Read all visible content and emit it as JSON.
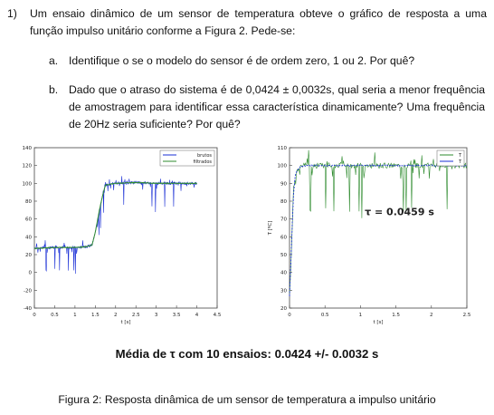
{
  "question": {
    "number": "1)",
    "text": "Um ensaio dinâmico de um sensor de temperatura obteve o gráfico de resposta a uma função impulso unitário conforme a Figura 2. Pede-se:",
    "items": [
      {
        "letter": "a.",
        "text": "Identifique o se o modelo do sensor é de ordem zero, 1 ou 2. Por quê?"
      },
      {
        "letter": "b.",
        "text": "Dado que o atraso do sistema é de 0,0424 ± 0,0032s, qual seria a menor frequência de amostragem para identificar essa característica dinamicamente? Uma frequência de 20Hz seria suficiente? Por quê?"
      }
    ]
  },
  "figure": {
    "mean_text": "Média de τ com 10 ensaios: 0.0424 +/- 0.0032 s",
    "caption": "Figura 2: Resposta dinâmica de um sensor de temperatura a impulso unitário"
  },
  "chart_data": [
    {
      "type": "line",
      "xlabel": "t [s]",
      "ylabel": "",
      "xlim": [
        0,
        4.5
      ],
      "ylim": [
        -40,
        140
      ],
      "xticks": [
        "0",
        "0.5",
        "1",
        "1.5",
        "2",
        "2.5",
        "3",
        "3.5",
        "4",
        "4.5"
      ],
      "yticks": [
        "-40",
        "-20",
        "0",
        "20",
        "40",
        "60",
        "80",
        "100",
        "120",
        "140"
      ],
      "legend_position": "top-right",
      "series": [
        {
          "name": "brutos",
          "color": "#1a2fd6",
          "x": [
            0,
            0.5,
            1.0,
            1.3,
            1.42,
            1.5,
            1.6,
            1.7,
            1.75,
            2.0,
            2.5,
            3.0,
            3.5,
            4.0
          ],
          "y": [
            27,
            28,
            28,
            29,
            31,
            45,
            70,
            90,
            98,
            100,
            101,
            100,
            100,
            100
          ]
        },
        {
          "name": "filtrados",
          "color": "#2e8b2e",
          "x": [
            0,
            0.5,
            1.0,
            1.3,
            1.42,
            1.5,
            1.6,
            1.7,
            1.75,
            2.0,
            2.5,
            3.0,
            3.5,
            4.0
          ],
          "y": [
            27,
            28,
            28,
            29,
            31,
            45,
            70,
            90,
            98,
            100,
            101,
            100,
            100,
            100
          ]
        }
      ]
    },
    {
      "type": "line",
      "xlabel": "t [s]",
      "ylabel": "T [ºC]",
      "xlim": [
        0,
        2.5
      ],
      "ylim": [
        20,
        110
      ],
      "xticks": [
        "0",
        "0.5",
        "1",
        "1.5",
        "2",
        "2.5"
      ],
      "yticks": [
        "20",
        "30",
        "40",
        "50",
        "60",
        "70",
        "80",
        "90",
        "100",
        "110"
      ],
      "legend_position": "top-right",
      "annotation": "τ = 0.0459 s",
      "series": [
        {
          "name": "T",
          "color": "#2e8b2e",
          "x": [
            0,
            0.02,
            0.04,
            0.06,
            0.08,
            0.1,
            0.15,
            0.2,
            0.3,
            0.5,
            1.0,
            1.5,
            2.0,
            2.5
          ],
          "y": [
            27,
            45,
            68,
            85,
            93,
            97,
            99,
            100,
            100,
            100,
            100,
            100,
            100,
            100
          ]
        },
        {
          "name": "T",
          "color": "#1a2fd6",
          "x": [
            0,
            0.02,
            0.04,
            0.06,
            0.08,
            0.1,
            0.15,
            0.2,
            0.3,
            0.5,
            1.0,
            1.5,
            2.0,
            2.5
          ],
          "y": [
            27,
            46,
            69,
            86,
            94,
            97,
            99,
            100,
            100,
            100,
            100,
            100,
            100,
            100
          ]
        }
      ]
    }
  ]
}
